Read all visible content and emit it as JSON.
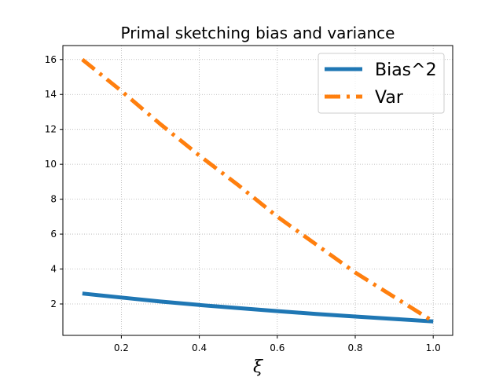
{
  "chart_data": {
    "type": "line",
    "title": "Primal sketching bias and variance",
    "xlabel": "ξ",
    "ylabel": "",
    "xlim": [
      0.05,
      1.05
    ],
    "ylim": [
      0.2,
      16.8
    ],
    "xticks": [
      0.2,
      0.4,
      0.6,
      0.8,
      1.0
    ],
    "xtick_labels": [
      "0.2",
      "0.4",
      "0.6",
      "0.8",
      "1.0"
    ],
    "yticks": [
      2,
      4,
      6,
      8,
      10,
      12,
      14,
      16
    ],
    "ytick_labels": [
      "2",
      "4",
      "6",
      "8",
      "10",
      "12",
      "14",
      "16"
    ],
    "grid": true,
    "legend_position": "upper right",
    "series": [
      {
        "name": "Bias^2",
        "color": "#1f77b4",
        "style": "solid",
        "x": [
          0.1,
          0.2,
          0.3,
          0.4,
          0.5,
          0.6,
          0.7,
          0.8,
          0.9,
          1.0
        ],
        "y": [
          2.6,
          2.37,
          2.14,
          1.94,
          1.76,
          1.59,
          1.43,
          1.28,
          1.14,
          1.0
        ]
      },
      {
        "name": "Var",
        "color": "#ff7f0e",
        "style": "dashdot",
        "x": [
          0.1,
          0.2,
          0.3,
          0.4,
          0.5,
          0.6,
          0.7,
          0.8,
          0.9,
          1.0
        ],
        "y": [
          16.0,
          14.2,
          12.3,
          10.5,
          8.8,
          7.0,
          5.4,
          3.8,
          2.4,
          1.0
        ]
      }
    ]
  }
}
